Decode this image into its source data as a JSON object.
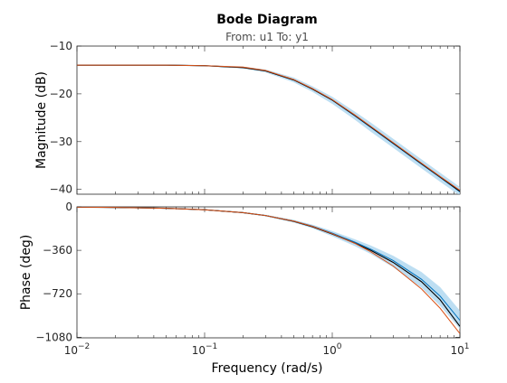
{
  "chart_data": {
    "type": "line",
    "title": "Bode Diagram",
    "subtitle": "From: u1  To: y1",
    "xlabel": "Frequency  (rad/s)",
    "x_scale": "log",
    "xlim": [
      0.01,
      10
    ],
    "x_ticks": [
      {
        "value": 0.01,
        "base": "10",
        "exp": "-2"
      },
      {
        "value": 0.1,
        "base": "10",
        "exp": "-1"
      },
      {
        "value": 1,
        "base": "10",
        "exp": "0"
      },
      {
        "value": 10,
        "base": "10",
        "exp": "1"
      }
    ],
    "colors": {
      "confidence_band": "#a7d3ee",
      "estimate": "#0072bd",
      "measured": "#000000",
      "model": "#d95319"
    },
    "panels": [
      {
        "ylabel": "Magnitude (dB)",
        "ylim": [
          -41,
          -10
        ],
        "yticks": [
          -10,
          -20,
          -30,
          -40
        ],
        "x": [
          0.01,
          0.02,
          0.05,
          0.1,
          0.2,
          0.3,
          0.5,
          0.7,
          1,
          1.5,
          2,
          3,
          5,
          7,
          10
        ],
        "series": [
          {
            "role": "measured",
            "values": [
              -14,
              -14,
              -14,
              -14.1,
              -14.5,
              -15.2,
              -17.1,
              -19.0,
              -21.3,
              -24.5,
              -26.9,
              -30.3,
              -34.6,
              -37.4,
              -40.4
            ]
          },
          {
            "role": "model",
            "values": [
              -14,
              -14,
              -14,
              -14.1,
              -14.4,
              -15.1,
              -17.0,
              -18.9,
              -21.2,
              -24.4,
              -26.8,
              -30.2,
              -34.5,
              -37.3,
              -40.2
            ]
          },
          {
            "role": "estimate",
            "values": [
              -14,
              -14,
              -14,
              -14.1,
              -14.5,
              -15.2,
              -17.1,
              -19.0,
              -21.3,
              -24.6,
              -27.0,
              -30.4,
              -34.7,
              -37.5,
              -40.5
            ]
          }
        ],
        "band": {
          "lower": [
            -14.1,
            -14.1,
            -14.1,
            -14.2,
            -14.7,
            -15.5,
            -17.6,
            -19.6,
            -22.1,
            -25.4,
            -27.9,
            -31.3,
            -35.6,
            -38.4,
            -41.3
          ],
          "upper": [
            -13.9,
            -13.9,
            -13.9,
            -14.0,
            -14.3,
            -14.9,
            -16.6,
            -18.4,
            -20.6,
            -23.7,
            -26.0,
            -29.4,
            -33.7,
            -36.5,
            -39.5
          ]
        }
      },
      {
        "ylabel": "Phase (deg)",
        "ylim": [
          -1085,
          0
        ],
        "yticks": [
          0,
          -360,
          -720,
          -1080
        ],
        "x": [
          0.01,
          0.02,
          0.05,
          0.1,
          0.2,
          0.3,
          0.5,
          0.7,
          1,
          1.5,
          2,
          3,
          5,
          7,
          10
        ],
        "series": [
          {
            "role": "measured",
            "values": [
              -2,
              -5,
              -12,
              -24,
              -48,
              -72,
              -120,
              -165,
              -225,
              -300,
              -360,
              -460,
              -620,
              -770,
              -990
            ]
          },
          {
            "role": "model",
            "values": [
              -2,
              -5,
              -12,
              -24,
              -48,
              -72,
              -118,
              -162,
              -222,
              -302,
              -372,
              -490,
              -680,
              -840,
              -1050
            ]
          },
          {
            "role": "estimate",
            "values": [
              -2,
              -5,
              -12,
              -24,
              -48,
              -72,
              -118,
              -160,
              -218,
              -292,
              -350,
              -445,
              -600,
              -740,
              -940
            ]
          }
        ],
        "band": {
          "lower": [
            -3,
            -6,
            -14,
            -27,
            -53,
            -79,
            -130,
            -178,
            -243,
            -325,
            -390,
            -500,
            -670,
            -820,
            -1010
          ],
          "upper": [
            -1,
            -4,
            -10,
            -21,
            -43,
            -65,
            -108,
            -148,
            -200,
            -268,
            -320,
            -405,
            -540,
            -665,
            -860
          ]
        }
      }
    ]
  }
}
